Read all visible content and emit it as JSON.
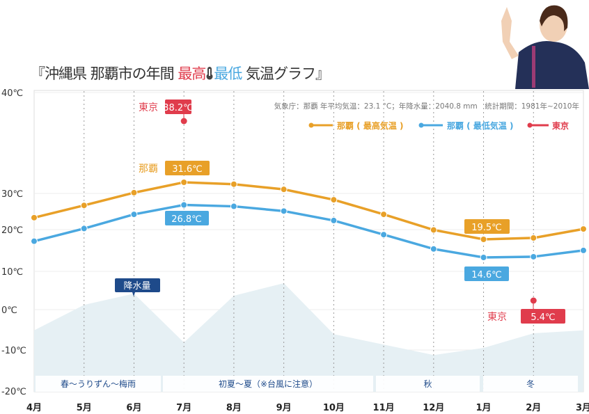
{
  "title": {
    "prefix": "『沖縄県 那覇市の年間 ",
    "high": "最高",
    "low": "最低",
    "suffix": " 気温グラフ』",
    "icon": "thermometer-icon"
  },
  "colors": {
    "high": "#e8a028",
    "low": "#4aa8e0",
    "tokyo": "#e03c4c",
    "rain_fill": "#e6f0f4",
    "rain_label": "#1e4a8a"
  },
  "chart_data": {
    "type": "line",
    "title": "沖縄県 那覇市の年間 最高・最低 気温グラフ",
    "note": "気象庁：那覇 年平均気温：23.1 °C；年降水量：2040.8 mm　統計期間：1981年~2010年",
    "categories": [
      "4月",
      "5月",
      "6月",
      "7月",
      "8月",
      "9月",
      "10月",
      "11月",
      "12月",
      "1月",
      "2月",
      "3月"
    ],
    "y_ticks": [
      "40℃",
      "30℃",
      "20℃",
      "10℃",
      "0℃",
      "-10℃",
      "-20℃"
    ],
    "ylim": [
      -20,
      40
    ],
    "grid": true,
    "legend_position": "top-right",
    "series": [
      {
        "name": "那覇（最高気温）",
        "legend": "那覇 ( 最高気温 )",
        "values": [
          24.1,
          26.7,
          29.4,
          31.6,
          31.2,
          30.1,
          27.9,
          24.8,
          21.5,
          19.5,
          19.8,
          21.7
        ]
      },
      {
        "name": "那覇（最低気温）",
        "legend": "那覇 ( 最低気温 )",
        "values": [
          19.0,
          21.8,
          24.8,
          26.8,
          26.5,
          25.5,
          23.5,
          20.5,
          16.9,
          14.6,
          14.8,
          16.5
        ]
      }
    ],
    "tokyo": {
      "legend": "東京",
      "points": [
        {
          "month": "7月",
          "value": 38.2,
          "label": "38.2℃"
        },
        {
          "month": "2月",
          "value": 5.4,
          "label": "5.4℃"
        }
      ]
    },
    "annotations": {
      "naha_label": "那覇",
      "tokyo_label": "東京",
      "high_max": "31.6℃",
      "high_min": "19.5℃",
      "low_max": "26.8℃",
      "low_min": "14.6℃"
    },
    "rain": {
      "label": "降水量",
      "unit": "mm",
      "values": [
        147,
        208,
        235,
        118,
        230,
        260,
        138,
        113,
        88,
        105,
        140,
        147
      ]
    },
    "seasons": [
      {
        "label": "春〜うりずん〜梅雨"
      },
      {
        "label": "初夏〜夏（※台風に注意）"
      },
      {
        "label": "秋"
      },
      {
        "label": "冬"
      }
    ]
  }
}
